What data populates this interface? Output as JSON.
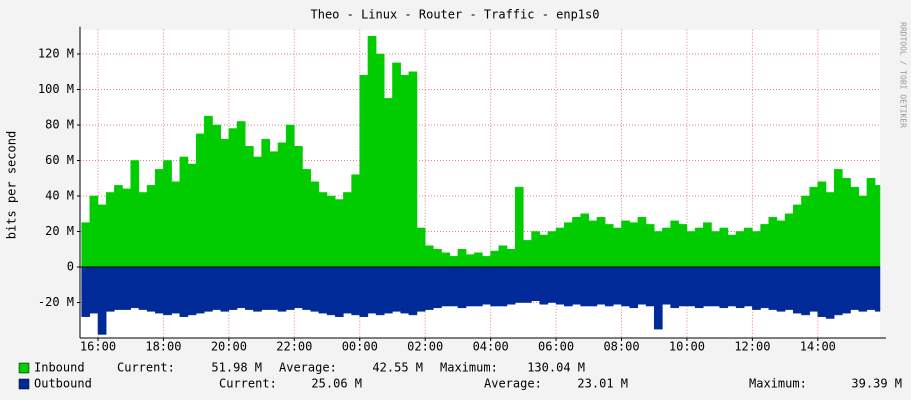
{
  "chart_data": {
    "type": "area",
    "title": "Theo - Linux - Router - Traffic - enp1s0",
    "y_label": "bits per second",
    "watermark": "RRDTOOL / TOBI OETIKER",
    "x": [
      -0.5,
      -0.25,
      0,
      0.25,
      0.5,
      0.75,
      1,
      1.25,
      1.5,
      1.75,
      2,
      2.25,
      2.5,
      2.75,
      3,
      3.25,
      3.5,
      3.75,
      4,
      4.25,
      4.5,
      4.75,
      5,
      5.25,
      5.5,
      5.75,
      6,
      6.25,
      6.5,
      6.75,
      7,
      7.25,
      7.5,
      7.75,
      8,
      8.25,
      8.5,
      8.75,
      9,
      9.25,
      9.5,
      9.75,
      10,
      10.25,
      10.5,
      10.75,
      11,
      11.25,
      11.5,
      11.75,
      12,
      12.25,
      12.5,
      12.75,
      13,
      13.25,
      13.5,
      13.75,
      14,
      14.25,
      14.5,
      14.75,
      15,
      15.25,
      15.5,
      15.75,
      16,
      16.25,
      16.5,
      16.75,
      17,
      17.25,
      17.5,
      17.75,
      18,
      18.25,
      18.5,
      18.75,
      19,
      19.25,
      19.5,
      19.75,
      20,
      20.25,
      20.5,
      20.75,
      21,
      21.25,
      21.5,
      21.75,
      22,
      22.25,
      22.5,
      22.75,
      23,
      23.25,
      23.5,
      23.75
    ],
    "xlim": [
      -0.55,
      23.9
    ],
    "xticks": [
      {
        "value": 0,
        "label": "16:00"
      },
      {
        "value": 2,
        "label": "18:00"
      },
      {
        "value": 4,
        "label": "20:00"
      },
      {
        "value": 6,
        "label": "22:00"
      },
      {
        "value": 8,
        "label": "00:00"
      },
      {
        "value": 10,
        "label": "02:00"
      },
      {
        "value": 12,
        "label": "04:00"
      },
      {
        "value": 14,
        "label": "06:00"
      },
      {
        "value": 16,
        "label": "08:00"
      },
      {
        "value": 18,
        "label": "10:00"
      },
      {
        "value": 20,
        "label": "12:00"
      },
      {
        "value": 22,
        "label": "14:00"
      }
    ],
    "ylim": [
      -40,
      132
    ],
    "yticks": [
      {
        "value": -20,
        "label": "-20 M"
      },
      0,
      {
        "value": 20,
        "label": "20 M"
      },
      {
        "value": 40,
        "label": "40 M"
      },
      {
        "value": 60,
        "label": "60 M"
      },
      {
        "value": 80,
        "label": "80 M"
      },
      {
        "value": 100,
        "label": "100 M"
      },
      {
        "value": 120,
        "label": "120 M"
      }
    ],
    "grid": true,
    "series": [
      {
        "name": "Inbound",
        "color": "#00cc00",
        "values": [
          25,
          40,
          35,
          42,
          46,
          44,
          60,
          42,
          46,
          55,
          60,
          48,
          62,
          58,
          75,
          85,
          80,
          72,
          78,
          82,
          68,
          62,
          72,
          65,
          70,
          80,
          68,
          55,
          48,
          42,
          40,
          38,
          42,
          52,
          108,
          130,
          120,
          95,
          115,
          108,
          110,
          22,
          12,
          10,
          8,
          6,
          10,
          7,
          8,
          6,
          9,
          12,
          10,
          45,
          15,
          20,
          18,
          20,
          22,
          25,
          28,
          30,
          26,
          28,
          24,
          22,
          26,
          25,
          28,
          24,
          20,
          22,
          26,
          24,
          20,
          22,
          25,
          20,
          22,
          18,
          20,
          22,
          20,
          24,
          28,
          26,
          30,
          35,
          40,
          45,
          48,
          42,
          55,
          50,
          45,
          40,
          50,
          46
        ],
        "stats": [
          {
            "label": "Current:",
            "value": "51.98 M"
          },
          {
            "label": "Average:",
            "value": "42.55 M"
          },
          {
            "label": "Maximum:",
            "value": "130.04 M"
          }
        ]
      },
      {
        "name": "Outbound",
        "color": "#002a97",
        "values": [
          -28,
          -26,
          -38,
          -25,
          -24,
          -24,
          -23,
          -24,
          -25,
          -26,
          -27,
          -26,
          -28,
          -27,
          -26,
          -25,
          -24,
          -25,
          -24,
          -23,
          -24,
          -25,
          -24,
          -24,
          -25,
          -24,
          -23,
          -24,
          -25,
          -26,
          -27,
          -28,
          -26,
          -27,
          -28,
          -26,
          -27,
          -26,
          -25,
          -26,
          -27,
          -25,
          -24,
          -23,
          -22,
          -22,
          -23,
          -22,
          -22,
          -21,
          -22,
          -22,
          -21,
          -20,
          -20,
          -19,
          -21,
          -20,
          -21,
          -22,
          -21,
          -22,
          -22,
          -21,
          -22,
          -21,
          -22,
          -23,
          -21,
          -22,
          -35,
          -21,
          -23,
          -22,
          -22,
          -23,
          -22,
          -22,
          -23,
          -22,
          -23,
          -22,
          -24,
          -23,
          -24,
          -25,
          -24,
          -26,
          -27,
          -25,
          -28,
          -29,
          -27,
          -26,
          -24,
          -25,
          -24,
          -25
        ],
        "stats": [
          {
            "label": "Current:",
            "value": "25.06 M"
          },
          {
            "label": "Average:",
            "value": "23.01 M"
          },
          {
            "label": "Maximum:",
            "value": "39.39 M"
          }
        ]
      }
    ]
  }
}
